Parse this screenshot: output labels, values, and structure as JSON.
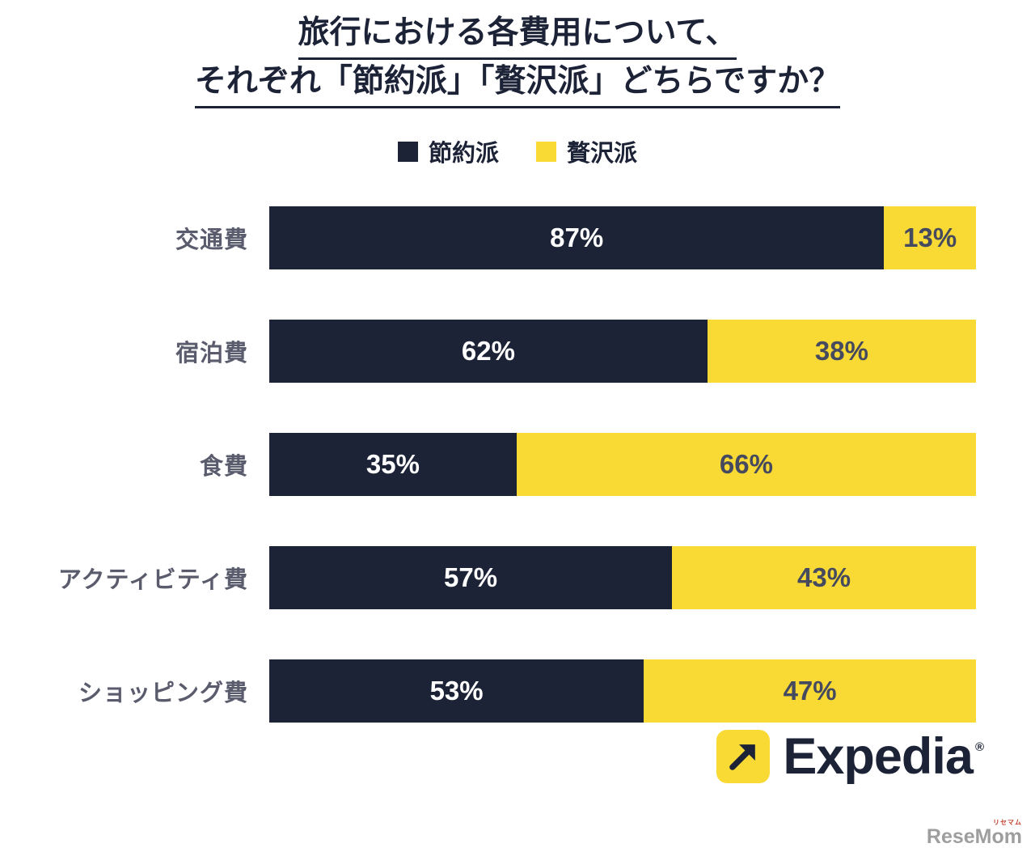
{
  "title": {
    "line1": "旅行における各費用について、",
    "line2": "それぞれ「節約派」「贅沢派」どちらですか？"
  },
  "legend": [
    {
      "label": "節約派",
      "color": "#1d2337"
    },
    {
      "label": "贅沢派",
      "color": "#f9da35"
    }
  ],
  "chart_data": {
    "type": "bar",
    "orientation": "horizontal",
    "stacked": true,
    "grid": false,
    "legend_position": "top",
    "xlim": [
      0,
      100
    ],
    "categories": [
      "交通費",
      "宿泊費",
      "食費",
      "アクティビティ費",
      "ショッピング費"
    ],
    "series": [
      {
        "name": "節約派",
        "color": "#1d2337",
        "values": [
          87,
          62,
          35,
          57,
          53
        ],
        "labels": [
          "87%",
          "62%",
          "35%",
          "57%",
          "53%"
        ]
      },
      {
        "name": "贅沢派",
        "color": "#f9da35",
        "values": [
          13,
          38,
          66,
          43,
          47
        ],
        "labels": [
          "13%",
          "38%",
          "66%",
          "43%",
          "47%"
        ]
      }
    ]
  },
  "branding": {
    "name": "Expedia",
    "registered": "®",
    "icon_bg": "#f9da35",
    "icon_fg": "#1d2337"
  },
  "watermark": {
    "sub": "リセマム",
    "main": "ReseMom"
  }
}
